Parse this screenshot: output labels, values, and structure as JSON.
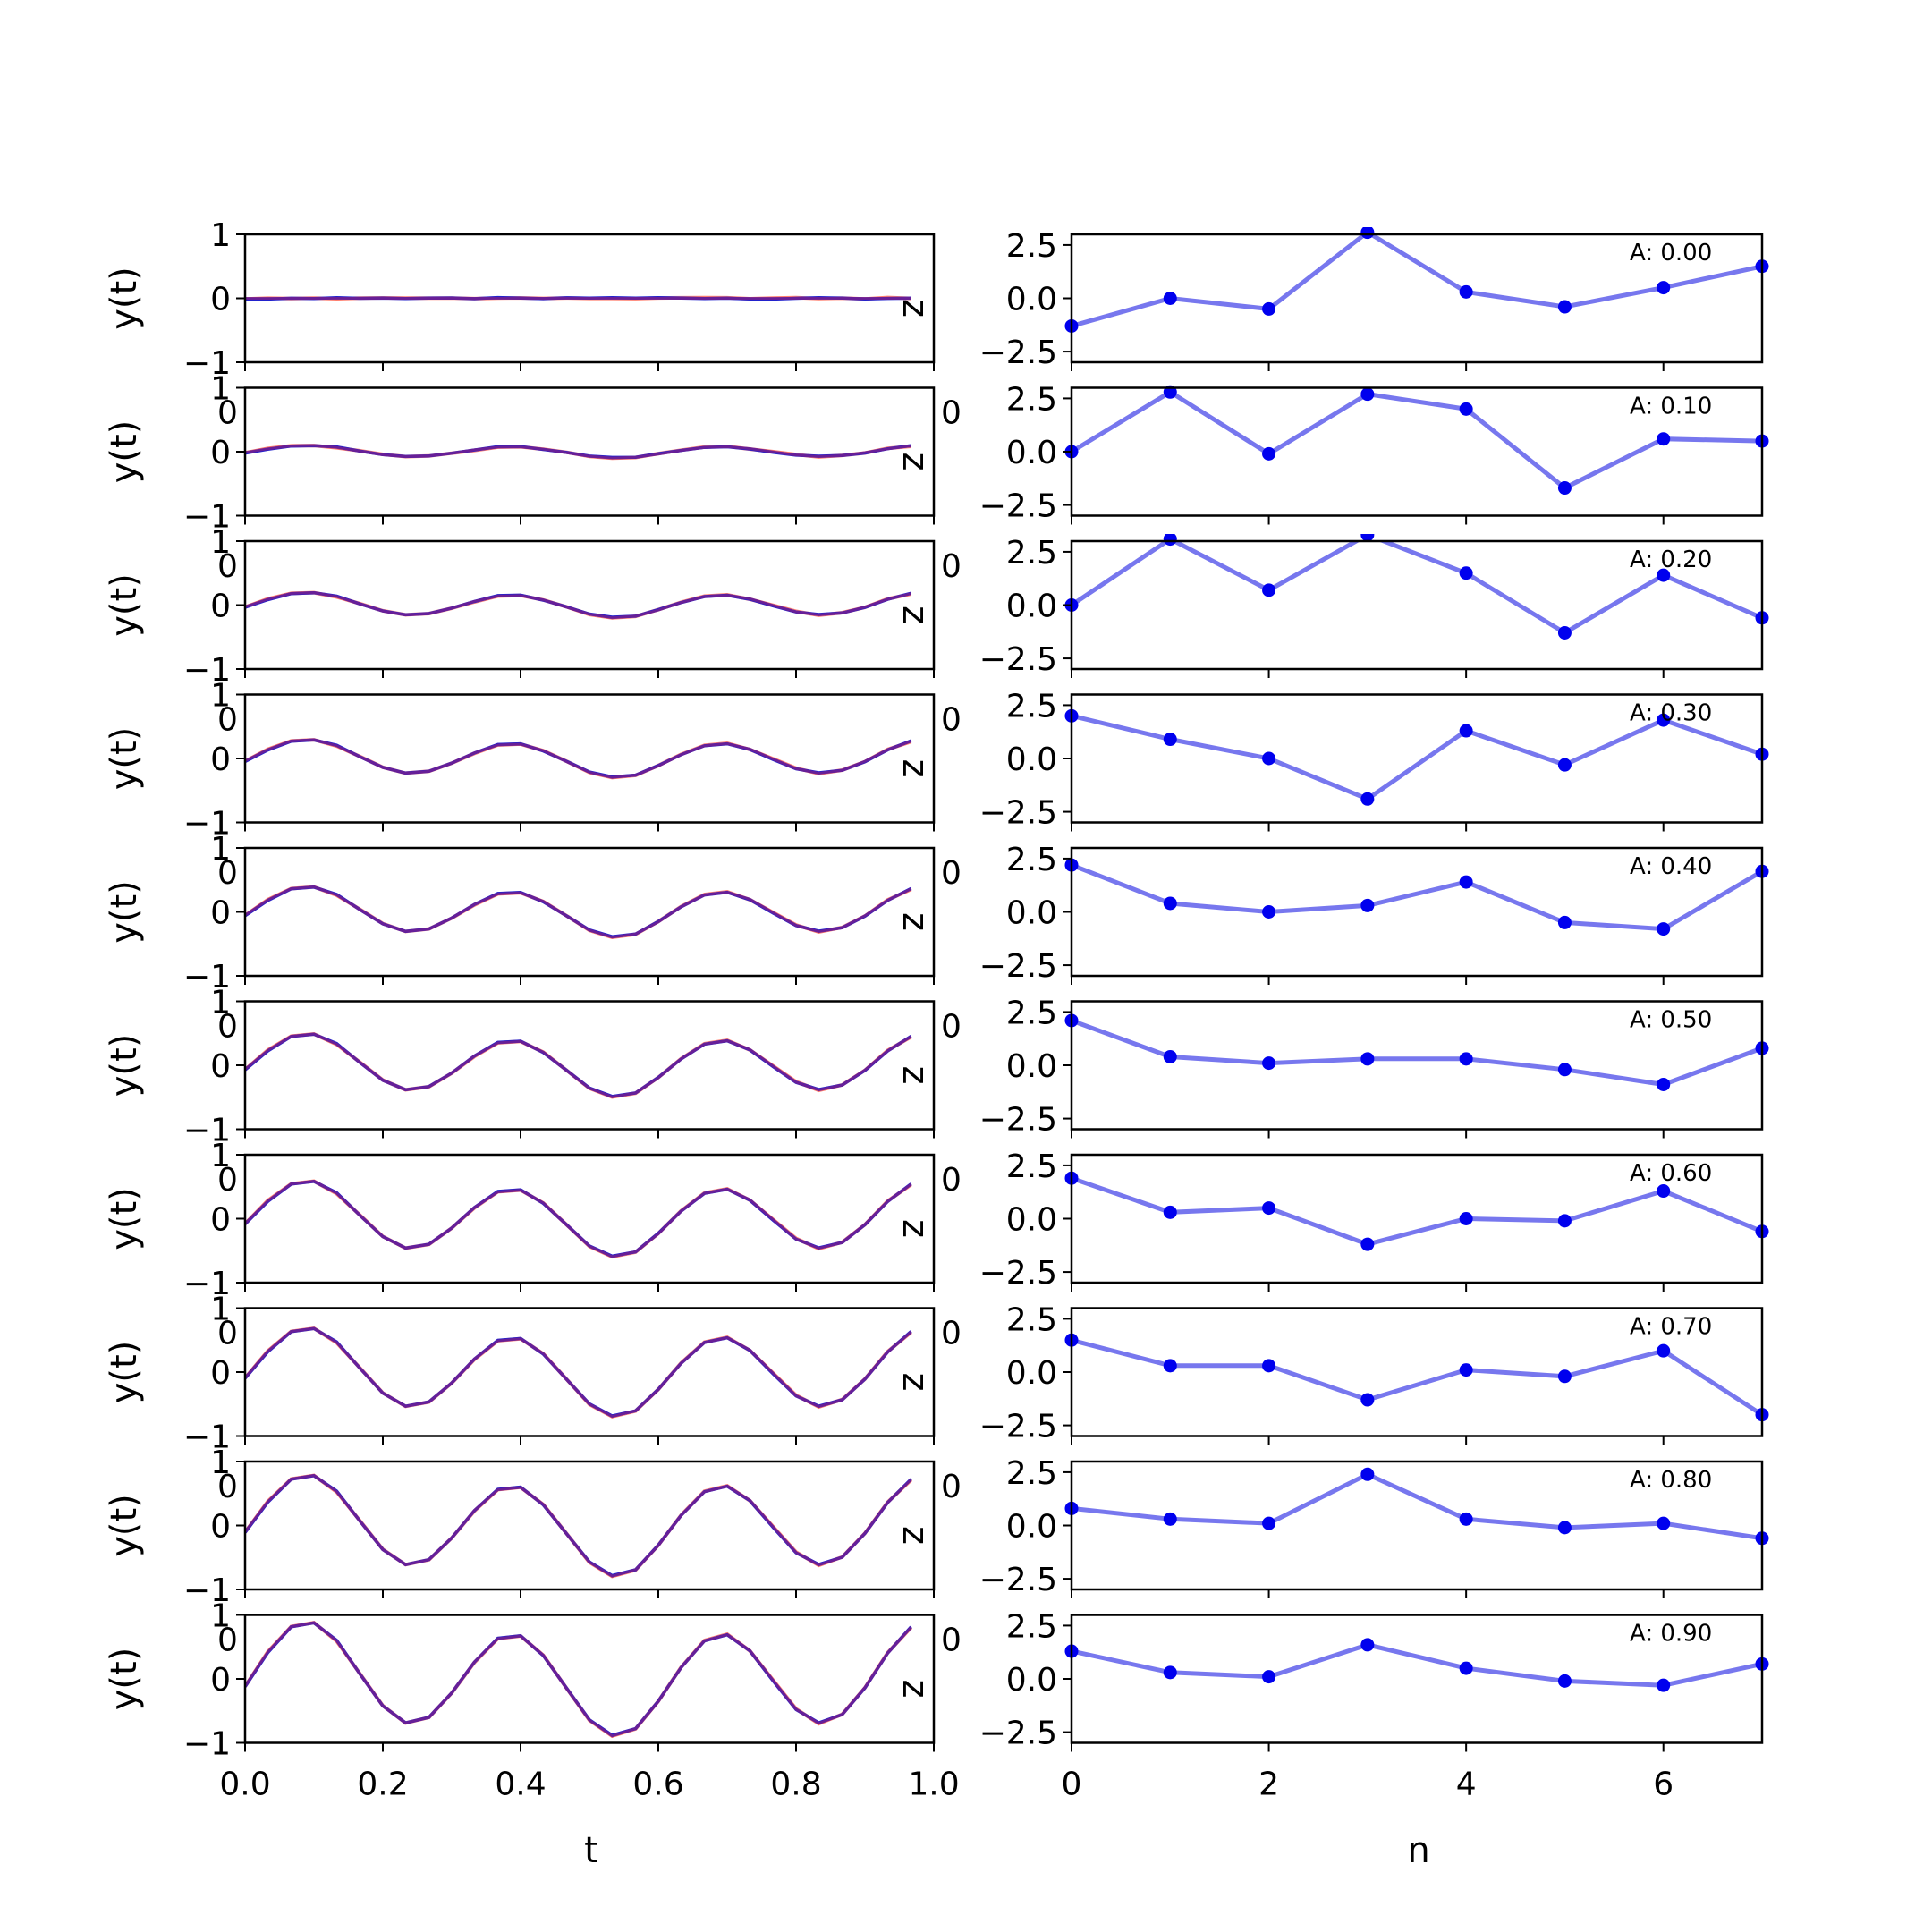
{
  "chart_data": [
    {
      "type": "line",
      "panel_side": "left",
      "x": [
        0,
        0.033,
        0.067,
        0.1,
        0.133,
        0.167,
        0.2,
        0.233,
        0.267,
        0.3,
        0.333,
        0.367,
        0.4,
        0.433,
        0.467,
        0.5,
        0.533,
        0.567,
        0.6,
        0.633,
        0.667,
        0.7,
        0.733,
        0.767,
        0.8,
        0.833,
        0.867,
        0.9,
        0.933,
        0.967
      ],
      "xlim": [
        0,
        1
      ],
      "ylim": [
        -1,
        1
      ],
      "xticks": [
        "0.0",
        "0.2",
        "0.4",
        "0.6",
        "0.8",
        "1.0"
      ],
      "yticks": [
        "1",
        "0",
        "−1"
      ],
      "xlabel": "t",
      "ylabel": "y(t)",
      "right_label": "z",
      "stray_tick_label": "0",
      "series_colors": {
        "reference": "#ff7f6e",
        "signal": "#2222cc",
        "blend": "#7a1f8a"
      },
      "rows": [
        {
          "amplitude": 0.0
        },
        {
          "amplitude": 0.1
        },
        {
          "amplitude": 0.2
        },
        {
          "amplitude": 0.3
        },
        {
          "amplitude": 0.4
        },
        {
          "amplitude": 0.5
        },
        {
          "amplitude": 0.6
        },
        {
          "amplitude": 0.7
        },
        {
          "amplitude": 0.8
        },
        {
          "amplitude": 0.9
        }
      ]
    },
    {
      "type": "line",
      "panel_side": "right",
      "x": [
        0,
        1,
        2,
        3,
        4,
        5,
        6,
        7
      ],
      "xlim": [
        0,
        7
      ],
      "ylim": [
        -3,
        3
      ],
      "xticks": [
        "0",
        "2",
        "4",
        "6"
      ],
      "yticks": [
        "2.5",
        "0.0",
        "−2.5"
      ],
      "xlabel": "n",
      "line_color": "#7777ee",
      "marker_color": "#0000ee",
      "rows": [
        {
          "annotation": "A: 0.00",
          "values": [
            -1.3,
            0.0,
            -0.5,
            3.1,
            0.3,
            -0.4,
            0.5,
            1.5
          ]
        },
        {
          "annotation": "A: 0.10",
          "values": [
            0.0,
            2.8,
            -0.1,
            2.7,
            2.0,
            -1.7,
            0.6,
            0.5
          ]
        },
        {
          "annotation": "A: 0.20",
          "values": [
            0.0,
            3.1,
            0.7,
            3.3,
            1.5,
            -1.3,
            1.4,
            -0.6
          ]
        },
        {
          "annotation": "A: 0.30",
          "values": [
            2.0,
            0.9,
            0.0,
            -1.9,
            1.3,
            -0.3,
            1.8,
            0.2
          ]
        },
        {
          "annotation": "A: 0.40",
          "values": [
            2.2,
            0.4,
            0.0,
            0.3,
            1.4,
            -0.5,
            -0.8,
            1.9
          ]
        },
        {
          "annotation": "A: 0.50",
          "values": [
            2.1,
            0.4,
            0.1,
            0.3,
            0.3,
            -0.2,
            -0.9,
            0.8
          ]
        },
        {
          "annotation": "A: 0.60",
          "values": [
            1.9,
            0.3,
            0.5,
            -1.2,
            0.0,
            -0.1,
            1.3,
            -0.6
          ]
        },
        {
          "annotation": "A: 0.70",
          "values": [
            1.5,
            0.3,
            0.3,
            -1.3,
            0.1,
            -0.2,
            1.0,
            -2.0
          ]
        },
        {
          "annotation": "A: 0.80",
          "values": [
            0.8,
            0.3,
            0.1,
            2.4,
            0.3,
            -0.1,
            0.1,
            -0.6
          ]
        },
        {
          "annotation": "A: 0.90",
          "values": [
            1.3,
            0.3,
            0.1,
            1.6,
            0.5,
            -0.1,
            -0.3,
            0.7
          ]
        }
      ]
    }
  ]
}
